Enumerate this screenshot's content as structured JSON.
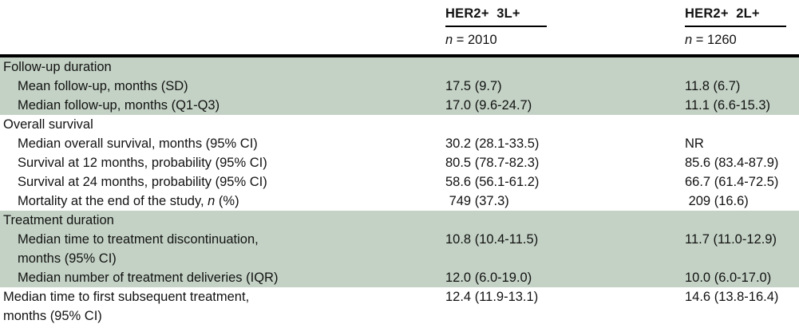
{
  "table": {
    "columns": [
      {
        "title": "HER2+  3L+",
        "n_italic": "n",
        "n_rest": " = 2010"
      },
      {
        "title": "HER2+  2L+",
        "n_italic": "n",
        "n_rest": " = 1260"
      }
    ],
    "rows": [
      {
        "label": "Follow-up duration"
      },
      {
        "label": "Mean follow-up, months (SD)",
        "c1": "17.5 (9.7)",
        "c2": "11.8 (6.7)"
      },
      {
        "label": "Median follow-up, months (Q1-Q3)",
        "c1": "17.0 (9.6-24.7)",
        "c2": "11.1 (6.6-15.3)"
      },
      {
        "label": "Overall survival"
      },
      {
        "label": "Median overall survival, months (95% CI)",
        "c1": "30.2 (28.1-33.5)",
        "c2": "NR"
      },
      {
        "label": "Survival at 12 months, probability (95% CI)",
        "c1": "80.5 (78.7-82.3)",
        "c2": "85.6 (83.4-87.9)"
      },
      {
        "label": "Survival at 24 months, probability (95% CI)",
        "c1": "58.6 (56.1-61.2)",
        "c2": "66.7 (61.4-72.5)"
      },
      {
        "label_pre": "Mortality at the end of the study, ",
        "label_italic": "n",
        "label_post": " (%)",
        "c1": " 749 (37.3)",
        "c2": " 209 (16.6)"
      },
      {
        "label": "Treatment duration"
      },
      {
        "label_line1": "Median time to treatment discontinuation,",
        "label_line2": "months (95% CI)",
        "c1": "10.8 (10.4-11.5)",
        "c2": "11.7 (11.0-12.9)"
      },
      {
        "label": "Median number of treatment deliveries (IQR)",
        "c1": "12.0 (6.0-19.0)",
        "c2": "10.0 (6.0-17.0)"
      },
      {
        "label_line1": "Median time to first subsequent treatment,",
        "label_line2": "months (95% CI)",
        "c1": "12.4 (11.9-13.1)",
        "c2": "14.6 (13.8-16.4)"
      }
    ],
    "colors": {
      "row_shade": "#c4d2c5",
      "rule": "#000000"
    }
  }
}
